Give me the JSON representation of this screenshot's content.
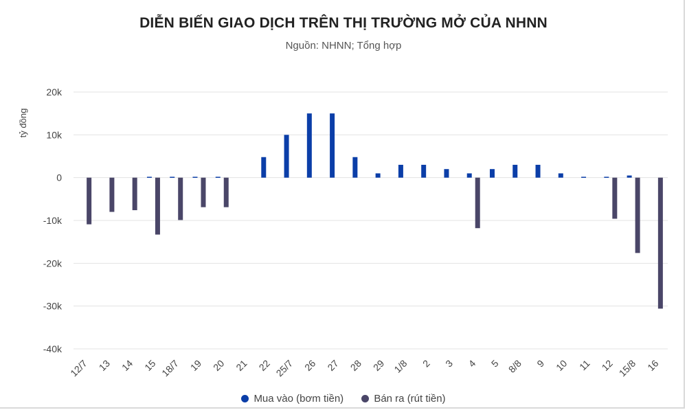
{
  "chart_data": {
    "type": "bar",
    "title": "DIỄN BIẾN GIAO DỊCH TRÊN THỊ TRƯỜNG MỞ CỦA NHNN",
    "subtitle": "Nguồn: NHNN; Tổng hợp",
    "ylabel": "tỷ đồng",
    "xlabel": "",
    "ylim": [
      -40000,
      20000
    ],
    "yticks": [
      20000,
      10000,
      0,
      -10000,
      -20000,
      -30000,
      -40000
    ],
    "ytick_labels": [
      "20k",
      "10k",
      "0",
      "-10k",
      "-20k",
      "-30k",
      "-40k"
    ],
    "grid": true,
    "legend_position": "bottom",
    "categories": [
      "12/7",
      "13",
      "14",
      "15",
      "18/7",
      "19",
      "20",
      "21",
      "22",
      "25/7",
      "26",
      "27",
      "28",
      "29",
      "1/8",
      "2",
      "3",
      "4",
      "5",
      "8/8",
      "9",
      "10",
      "11",
      "12",
      "15/8",
      "16"
    ],
    "series": [
      {
        "name": "Mua vào (bơm tiền)",
        "color": "#0b3ea8",
        "values": [
          0,
          0,
          0,
          200,
          200,
          200,
          200,
          0,
          4800,
          10000,
          15000,
          15000,
          4800,
          1000,
          3000,
          3000,
          2000,
          1000,
          2000,
          3000,
          3000,
          1000,
          200,
          200,
          500,
          0
        ]
      },
      {
        "name": "Bán ra (rút tiền)",
        "color": "#4a4668",
        "values": [
          -10900,
          -8000,
          -7600,
          -13300,
          -9900,
          -6900,
          -6900,
          0,
          0,
          0,
          0,
          0,
          0,
          0,
          0,
          0,
          0,
          -11800,
          0,
          0,
          0,
          0,
          0,
          -9600,
          -17600,
          -30600
        ]
      }
    ]
  }
}
